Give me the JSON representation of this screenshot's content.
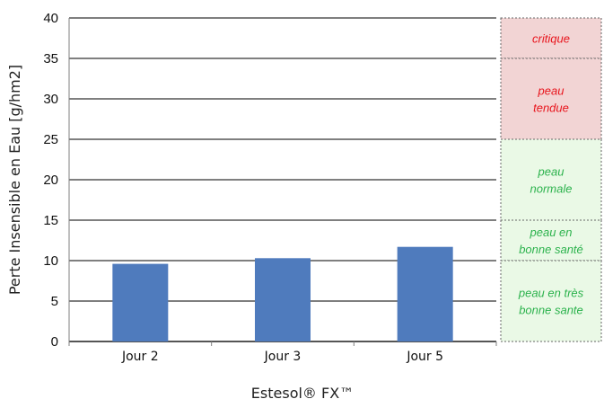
{
  "chart_data": {
    "type": "bar",
    "title": "",
    "xlabel": "Estesol® FX™",
    "ylabel": "Perte Insensible en Eau [g/hm2]",
    "ylim": [
      0,
      40
    ],
    "yticks": [
      0,
      5,
      10,
      15,
      20,
      25,
      30,
      35,
      40
    ],
    "grid": true,
    "categories": [
      "Jour 2",
      "Jour 3",
      "Jour 5"
    ],
    "values": [
      9.6,
      10.3,
      11.7
    ],
    "bar_color": "#4f7bbd",
    "zones": [
      {
        "from": 35,
        "to": 40,
        "lines": [
          "critique"
        ],
        "fill": "#f2d4d4",
        "text_color": "#e8141c"
      },
      {
        "from": 25,
        "to": 35,
        "lines": [
          "peau",
          "tendue"
        ],
        "fill": "#f2d4d4",
        "text_color": "#e8141c"
      },
      {
        "from": 15,
        "to": 25,
        "lines": [
          "peau",
          "normale"
        ],
        "fill": "#eaf9e6",
        "text_color": "#2bb24c"
      },
      {
        "from": 10,
        "to": 15,
        "lines": [
          "peau en",
          "bonne santé"
        ],
        "fill": "#eaf9e6",
        "text_color": "#2bb24c"
      },
      {
        "from": 0,
        "to": 10,
        "lines": [
          "peau en très",
          "bonne sante"
        ],
        "fill": "#eaf9e6",
        "text_color": "#2bb24c"
      }
    ]
  }
}
